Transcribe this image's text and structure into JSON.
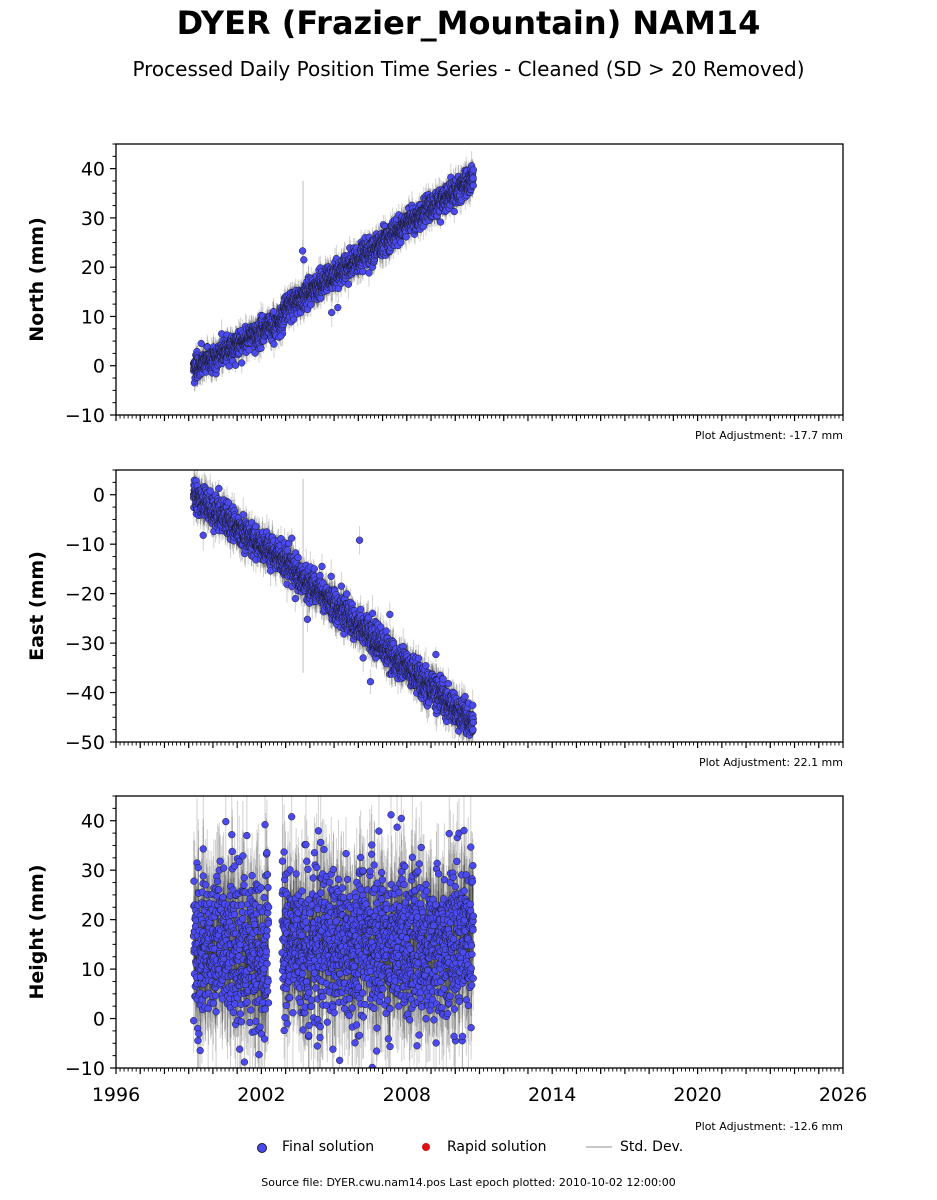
{
  "title": "DYER (Frazier_Mountain) NAM14",
  "subtitle": "Processed Daily Position Time Series - Cleaned (SD > 20 Removed)",
  "footer": "Source file: DYER.cwu.nam14.pos  Last epoch plotted: 2010-10-02 12:00:00",
  "legend": {
    "final_label": "Final solution",
    "rapid_label": "Rapid solution",
    "std_label": "Std. Dev."
  },
  "colors": {
    "final": "#4a4af0",
    "rapid": "#dd1111",
    "std": "#c8c8c8",
    "marker_edge": "#1a1a2a"
  },
  "chart_data": [
    {
      "type": "scatter",
      "ylabel": "North (mm)",
      "adjustment": "Plot Adjustment: -17.7 mm",
      "xlim": [
        1996,
        2026
      ],
      "ylim": [
        -10,
        45
      ],
      "yticks": [
        -10,
        0,
        10,
        20,
        30,
        40
      ],
      "xticks": [],
      "x_range": [
        1999.2,
        2010.75
      ],
      "trend": [
        [
          1999.2,
          -0.5
        ],
        [
          2002.0,
          7.0
        ],
        [
          2002.9,
          9.5
        ],
        [
          2003.0,
          11.5
        ],
        [
          2010.75,
          38.0
        ]
      ],
      "noise": 1.3,
      "std_spread": 2.0,
      "outliers": [
        [
          2003.7,
          23.3
        ],
        [
          2003.75,
          21.5
        ],
        [
          2002.8,
          6.0
        ],
        [
          2004.9,
          10.8
        ],
        [
          2005.15,
          11.8
        ],
        [
          2002.5,
          11.0
        ]
      ],
      "series": [
        {
          "name": "Final solution"
        }
      ]
    },
    {
      "type": "scatter",
      "ylabel": "East (mm)",
      "adjustment": "Plot Adjustment: 22.1 mm",
      "xlim": [
        1996,
        2026
      ],
      "ylim": [
        -50,
        5
      ],
      "yticks": [
        -50,
        -40,
        -30,
        -20,
        -10,
        0
      ],
      "xticks": [],
      "x_range": [
        1999.2,
        2010.75
      ],
      "trend": [
        [
          1999.2,
          0.0
        ],
        [
          2003.0,
          -14.0
        ],
        [
          2010.75,
          -46.5
        ]
      ],
      "noise": 1.6,
      "std_spread": 2.5,
      "outliers": [
        [
          1999.6,
          -8.2
        ],
        [
          2003.25,
          -8.8
        ],
        [
          2003.4,
          -21.0
        ],
        [
          2006.05,
          -9.2
        ],
        [
          2006.5,
          -37.8
        ],
        [
          2003.9,
          -25.2
        ],
        [
          2005.3,
          -18.5
        ],
        [
          2006.2,
          -33.0
        ],
        [
          2009.2,
          -32.3
        ],
        [
          2004.5,
          -14.5
        ],
        [
          2007.3,
          -24.2
        ]
      ],
      "series": [
        {
          "name": "Final solution"
        }
      ]
    },
    {
      "type": "scatter",
      "ylabel": "Height (mm)",
      "adjustment": "Plot Adjustment: -12.6 mm",
      "xlim": [
        1996,
        2026
      ],
      "ylim": [
        -10,
        45
      ],
      "yticks": [
        -10,
        0,
        10,
        20,
        30,
        40
      ],
      "xticks": [
        1996,
        2002,
        2008,
        2014,
        2020,
        2026
      ],
      "x_range": [
        1999.2,
        2010.75
      ],
      "gap": [
        2002.3,
        2002.85
      ],
      "trend": [
        [
          1999.2,
          15.0
        ],
        [
          2010.75,
          15.0
        ]
      ],
      "noise": 7.5,
      "std_spread": 9.0,
      "outliers": [
        [
          1999.6,
          34.3
        ],
        [
          2003.25,
          40.8
        ],
        [
          2002.15,
          39.2
        ],
        [
          2001.3,
          -8.8
        ],
        [
          2007.35,
          41.2
        ],
        [
          2007.6,
          38.7
        ],
        [
          2009.75,
          37.4
        ],
        [
          2004.95,
          -6.2
        ],
        [
          2009.95,
          -3.6
        ],
        [
          2010.3,
          -3.6
        ],
        [
          2006.05,
          -3.4
        ],
        [
          2001.9,
          -7.3
        ],
        [
          2006.85,
          37.9
        ],
        [
          2001.4,
          37.0
        ]
      ],
      "series": [
        {
          "name": "Final solution"
        }
      ]
    }
  ]
}
